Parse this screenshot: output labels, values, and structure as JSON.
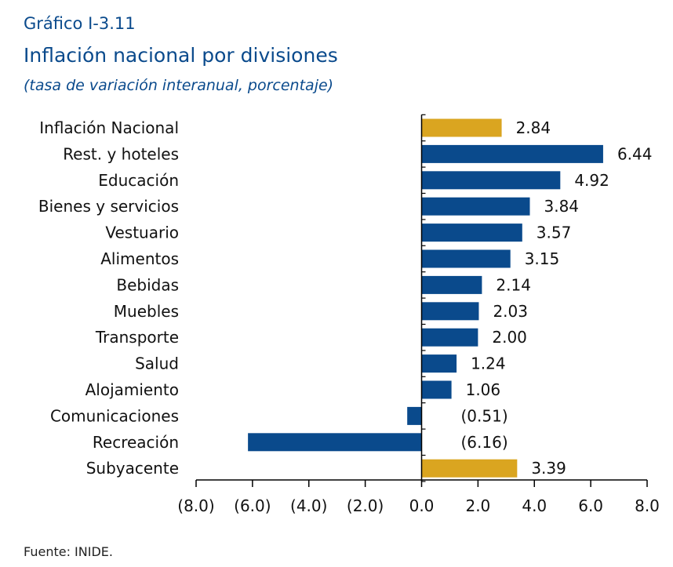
{
  "header": {
    "figure_label": "Gráfico I-3.11",
    "title": "Inflación nacional por divisiones",
    "subtitle": "(tasa de variación interanual, porcentaje)"
  },
  "source": "Fuente: INIDE.",
  "colors": {
    "highlight": "#daa520",
    "bar": "#0a4a8c",
    "header_text": "#0a4a8c"
  },
  "chart_data": {
    "type": "bar",
    "orientation": "horizontal",
    "categories": [
      "Inflación Nacional",
      "Rest. y hoteles",
      "Educación",
      "Bienes y servicios",
      "Vestuario",
      "Alimentos",
      "Bebidas",
      "Muebles",
      "Transporte",
      "Salud",
      "Alojamiento",
      "Comunicaciones",
      "Recreación",
      "Subyacente"
    ],
    "values": [
      2.84,
      6.44,
      4.92,
      3.84,
      3.57,
      3.15,
      2.14,
      2.03,
      2.0,
      1.24,
      1.06,
      -0.51,
      -6.16,
      3.39
    ],
    "data_labels": [
      "2.84",
      "6.44",
      "4.92",
      "3.84",
      "3.57",
      "3.15",
      "2.14",
      "2.03",
      "2.00",
      "1.24",
      "1.06",
      "(0.51)",
      "(6.16)",
      "3.39"
    ],
    "highlighted_categories": [
      "Inflación Nacional",
      "Subyacente"
    ],
    "xlim": [
      -8,
      8
    ],
    "xticks": [
      -8,
      -6,
      -4,
      -2,
      0,
      2,
      4,
      6,
      8
    ],
    "xtick_labels": [
      "(8.0)",
      "(6.0)",
      "(4.0)",
      "(2.0)",
      "0.0",
      "2.0",
      "4.0",
      "6.0",
      "8.0"
    ],
    "grid": false,
    "legend": "none"
  }
}
